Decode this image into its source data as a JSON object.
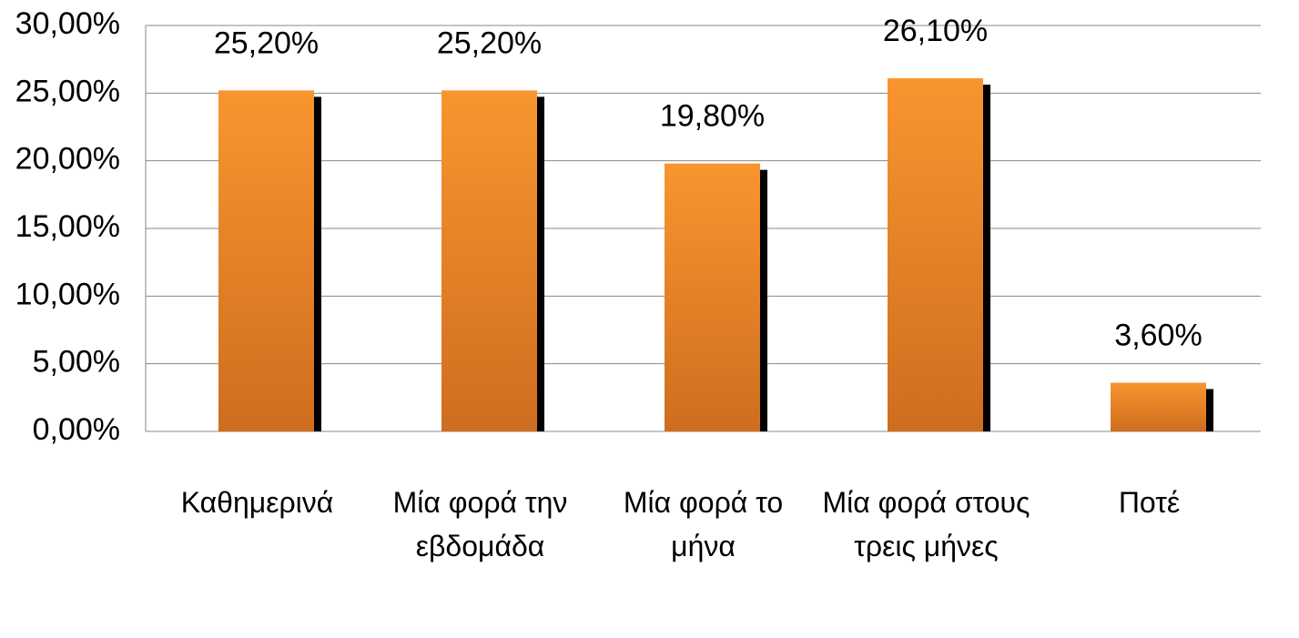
{
  "chart_data": {
    "type": "bar",
    "categories": [
      "Καθημερινά",
      "Μία φορά την εβδομάδα",
      "Μία φορά το μήνα",
      "Μία φορά στους τρεις μήνες",
      "Ποτέ"
    ],
    "values": [
      25.2,
      25.2,
      19.8,
      26.1,
      3.6
    ],
    "value_labels": [
      "25,20%",
      "25,20%",
      "19,80%",
      "26,10%",
      "3,60%"
    ],
    "color": "#f28a2a",
    "ylim": [
      0,
      30
    ],
    "yticks": [
      {
        "value": 0,
        "label": "0,00%"
      },
      {
        "value": 5,
        "label": "5,00%"
      },
      {
        "value": 10,
        "label": "10,00%"
      },
      {
        "value": 15,
        "label": "15,00%"
      },
      {
        "value": 20,
        "label": "20,00%"
      },
      {
        "value": 25,
        "label": "25,00%"
      },
      {
        "value": 30,
        "label": "30,00%"
      }
    ],
    "grid": true
  }
}
